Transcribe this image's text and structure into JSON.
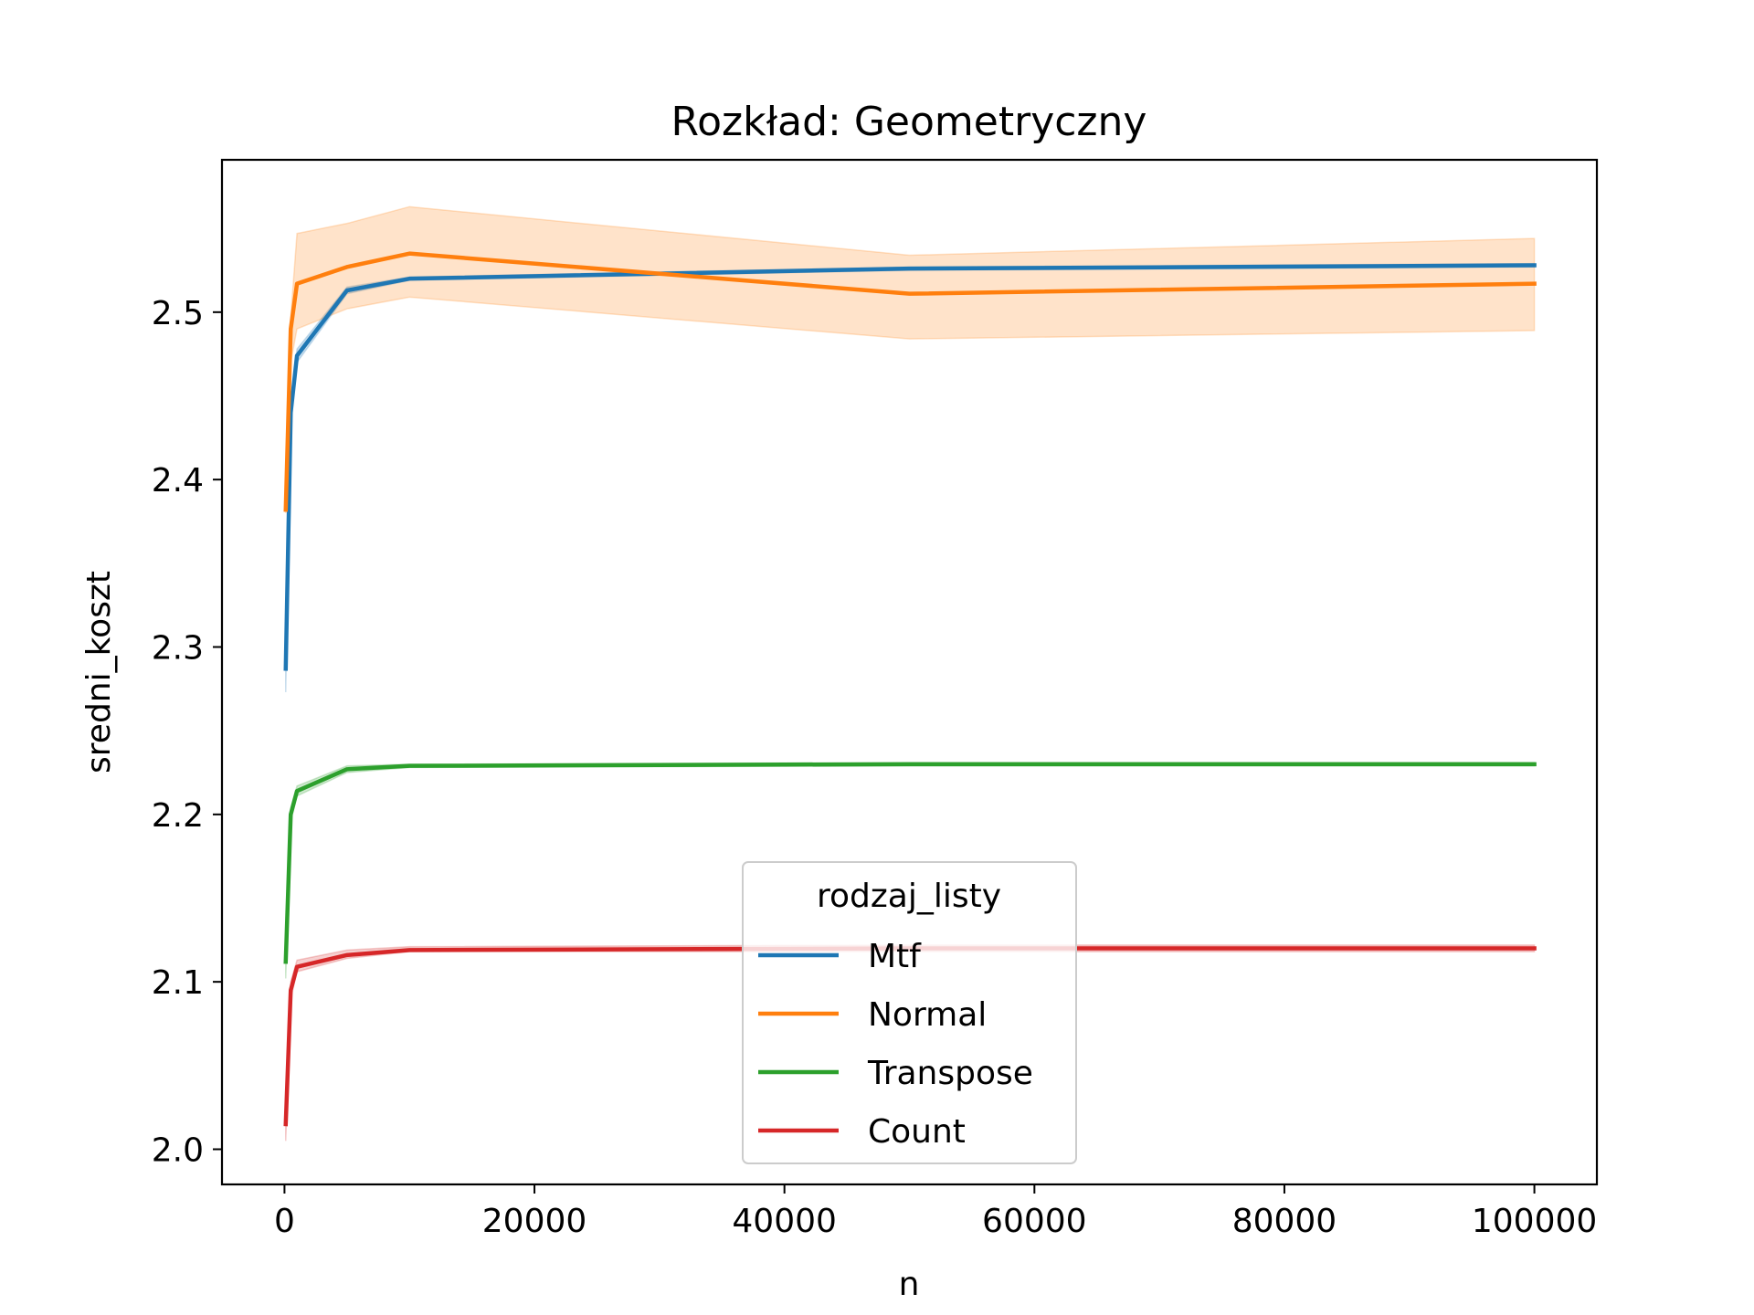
{
  "chart_data": {
    "type": "line",
    "title": "Rozkład: Geometryczny",
    "xlabel": "n",
    "ylabel": "sredni_koszt",
    "xlim": [
      -5000,
      105000
    ],
    "ylim": [
      1.979,
      2.591
    ],
    "xticks": [
      0,
      20000,
      40000,
      60000,
      80000,
      100000
    ],
    "yticks": [
      2.0,
      2.1,
      2.2,
      2.3,
      2.4,
      2.5
    ],
    "grid": false,
    "legend": {
      "title": "rodzaj_listy",
      "position": "lower-center"
    },
    "x": [
      100,
      500,
      1000,
      5000,
      10000,
      50000,
      100000
    ],
    "series": [
      {
        "name": "Mtf",
        "color": "#1f77b4",
        "values": [
          2.287,
          2.44,
          2.474,
          2.513,
          2.52,
          2.526,
          2.528
        ],
        "lower": [
          2.273,
          2.435,
          2.47,
          2.511,
          2.519,
          2.525,
          2.527
        ],
        "upper": [
          2.3,
          2.445,
          2.478,
          2.515,
          2.521,
          2.527,
          2.529
        ]
      },
      {
        "name": "Normal",
        "color": "#ff7f0e",
        "values": [
          2.382,
          2.49,
          2.517,
          2.527,
          2.535,
          2.511,
          2.517
        ],
        "lower": [
          2.38,
          2.47,
          2.49,
          2.502,
          2.509,
          2.484,
          2.489
        ],
        "upper": [
          2.385,
          2.497,
          2.547,
          2.553,
          2.563,
          2.534,
          2.544
        ]
      },
      {
        "name": "Transpose",
        "color": "#2ca02c",
        "values": [
          2.112,
          2.2,
          2.214,
          2.227,
          2.229,
          2.23,
          2.23
        ],
        "lower": [
          2.102,
          2.196,
          2.211,
          2.225,
          2.228,
          2.229,
          2.229
        ],
        "upper": [
          2.12,
          2.204,
          2.217,
          2.229,
          2.23,
          2.231,
          2.231
        ]
      },
      {
        "name": "Count",
        "color": "#d62728",
        "values": [
          2.015,
          2.095,
          2.109,
          2.116,
          2.119,
          2.12,
          2.12
        ],
        "lower": [
          2.005,
          2.09,
          2.106,
          2.114,
          2.118,
          2.118,
          2.118
        ],
        "upper": [
          2.025,
          2.1,
          2.113,
          2.119,
          2.121,
          2.122,
          2.122
        ]
      }
    ]
  }
}
